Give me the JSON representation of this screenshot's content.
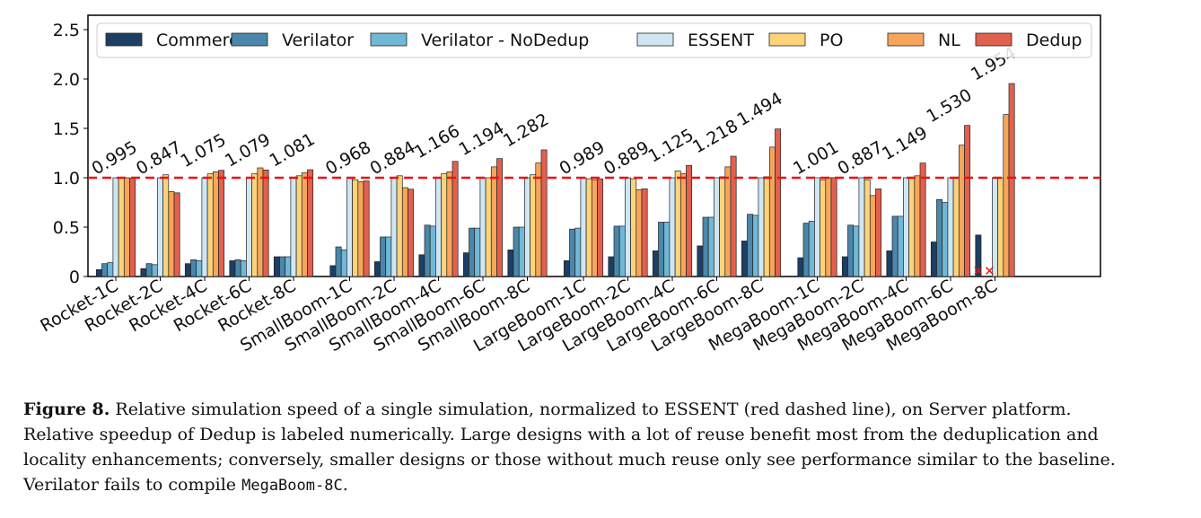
{
  "chart_data": {
    "type": "bar",
    "title": "",
    "xlabel": "",
    "ylabel": "",
    "ylim": [
      0,
      2.6
    ],
    "yticks": [
      "0",
      "0.5",
      "1.0",
      "1.5",
      "2.0",
      "2.5"
    ],
    "reference_line": {
      "value": 1.0,
      "label": "ESSENT baseline",
      "color": "#ee1111"
    },
    "legend_position": "top",
    "categories": [
      "Rocket-1C",
      "Rocket-2C",
      "Rocket-4C",
      "Rocket-6C",
      "Rocket-8C",
      "SmallBoom-1C",
      "SmallBoom-2C",
      "SmallBoom-4C",
      "SmallBoom-6C",
      "SmallBoom-8C",
      "LargeBoom-1C",
      "LargeBoom-2C",
      "LargeBoom-4C",
      "LargeBoom-6C",
      "LargeBoom-8C",
      "MegaBoom-1C",
      "MegaBoom-2C",
      "MegaBoom-4C",
      "MegaBoom-6C",
      "MegaBoom-8C"
    ],
    "series": [
      {
        "name": "Commercial",
        "color": "#1c3f63",
        "values": [
          0.07,
          0.08,
          0.13,
          0.16,
          0.2,
          0.11,
          0.15,
          0.22,
          0.24,
          0.27,
          0.16,
          0.2,
          0.26,
          0.31,
          0.36,
          0.19,
          0.2,
          0.26,
          0.35,
          0.42
        ]
      },
      {
        "name": "Verilator",
        "color": "#4a87aa",
        "values": [
          0.13,
          0.13,
          0.17,
          0.17,
          0.2,
          0.3,
          0.4,
          0.52,
          0.49,
          0.5,
          0.48,
          0.51,
          0.55,
          0.6,
          0.63,
          0.54,
          0.52,
          0.61,
          0.78,
          null
        ]
      },
      {
        "name": "Verilator - NoDedup",
        "color": "#70b8d6",
        "values": [
          0.14,
          0.12,
          0.16,
          0.16,
          0.2,
          0.27,
          0.4,
          0.51,
          0.49,
          0.5,
          0.49,
          0.51,
          0.55,
          0.6,
          0.62,
          0.56,
          0.51,
          0.61,
          0.75,
          null
        ]
      },
      {
        "name": "ESSENT",
        "color": "#cfe6f5",
        "values": [
          1,
          1,
          1,
          1,
          1,
          1,
          1,
          1,
          1,
          1,
          1,
          1,
          1,
          1,
          1,
          1,
          1,
          1,
          1,
          1
        ]
      },
      {
        "name": "PO",
        "color": "#fdd37a",
        "values": [
          1.0,
          1.03,
          1.04,
          1.04,
          1.02,
          0.98,
          1.02,
          1.04,
          1.0,
          1.03,
          0.99,
          0.99,
          1.07,
          1.01,
          1.01,
          0.98,
          0.98,
          1.0,
          1.0,
          1.0
        ]
      },
      {
        "name": "NL",
        "color": "#f6a65a",
        "values": [
          1.0,
          0.86,
          1.06,
          1.1,
          1.05,
          0.96,
          0.9,
          1.06,
          1.11,
          1.15,
          0.98,
          0.88,
          1.04,
          1.11,
          1.31,
          1.0,
          0.82,
          1.02,
          1.33,
          1.64
        ]
      },
      {
        "name": "Dedup",
        "color": "#e2604e",
        "values": [
          0.995,
          0.847,
          1.075,
          1.079,
          1.081,
          0.968,
          0.884,
          1.166,
          1.194,
          1.282,
          0.989,
          0.889,
          1.125,
          1.218,
          1.494,
          1.001,
          0.887,
          1.149,
          1.53,
          1.954
        ]
      }
    ],
    "dedup_labels": [
      "0.995",
      "0.847",
      "1.075",
      "1.079",
      "1.081",
      "0.968",
      "0.884",
      "1.166",
      "1.194",
      "1.282",
      "0.989",
      "0.889",
      "1.125",
      "1.218",
      "1.494",
      "1.001",
      "0.887",
      "1.149",
      "1.530",
      "1.954"
    ],
    "failure_marker": {
      "category": "MegaBoom-8C",
      "series": "Verilator",
      "symbol": "xx",
      "color": "#ee1111"
    }
  },
  "caption": {
    "label": "Figure 8.",
    "text": " Relative simulation speed of a single simulation, normalized to ESSENT (red dashed line), on Server platform. Relative speedup of Dedup is labeled numerically. Large designs with a lot of reuse benefit most from the deduplication and locality enhancements; conversely, smaller designs or those without much reuse only see performance similar to the baseline. Verilator fails to compile ",
    "code": "MegaBoom-8C",
    "end": "."
  }
}
